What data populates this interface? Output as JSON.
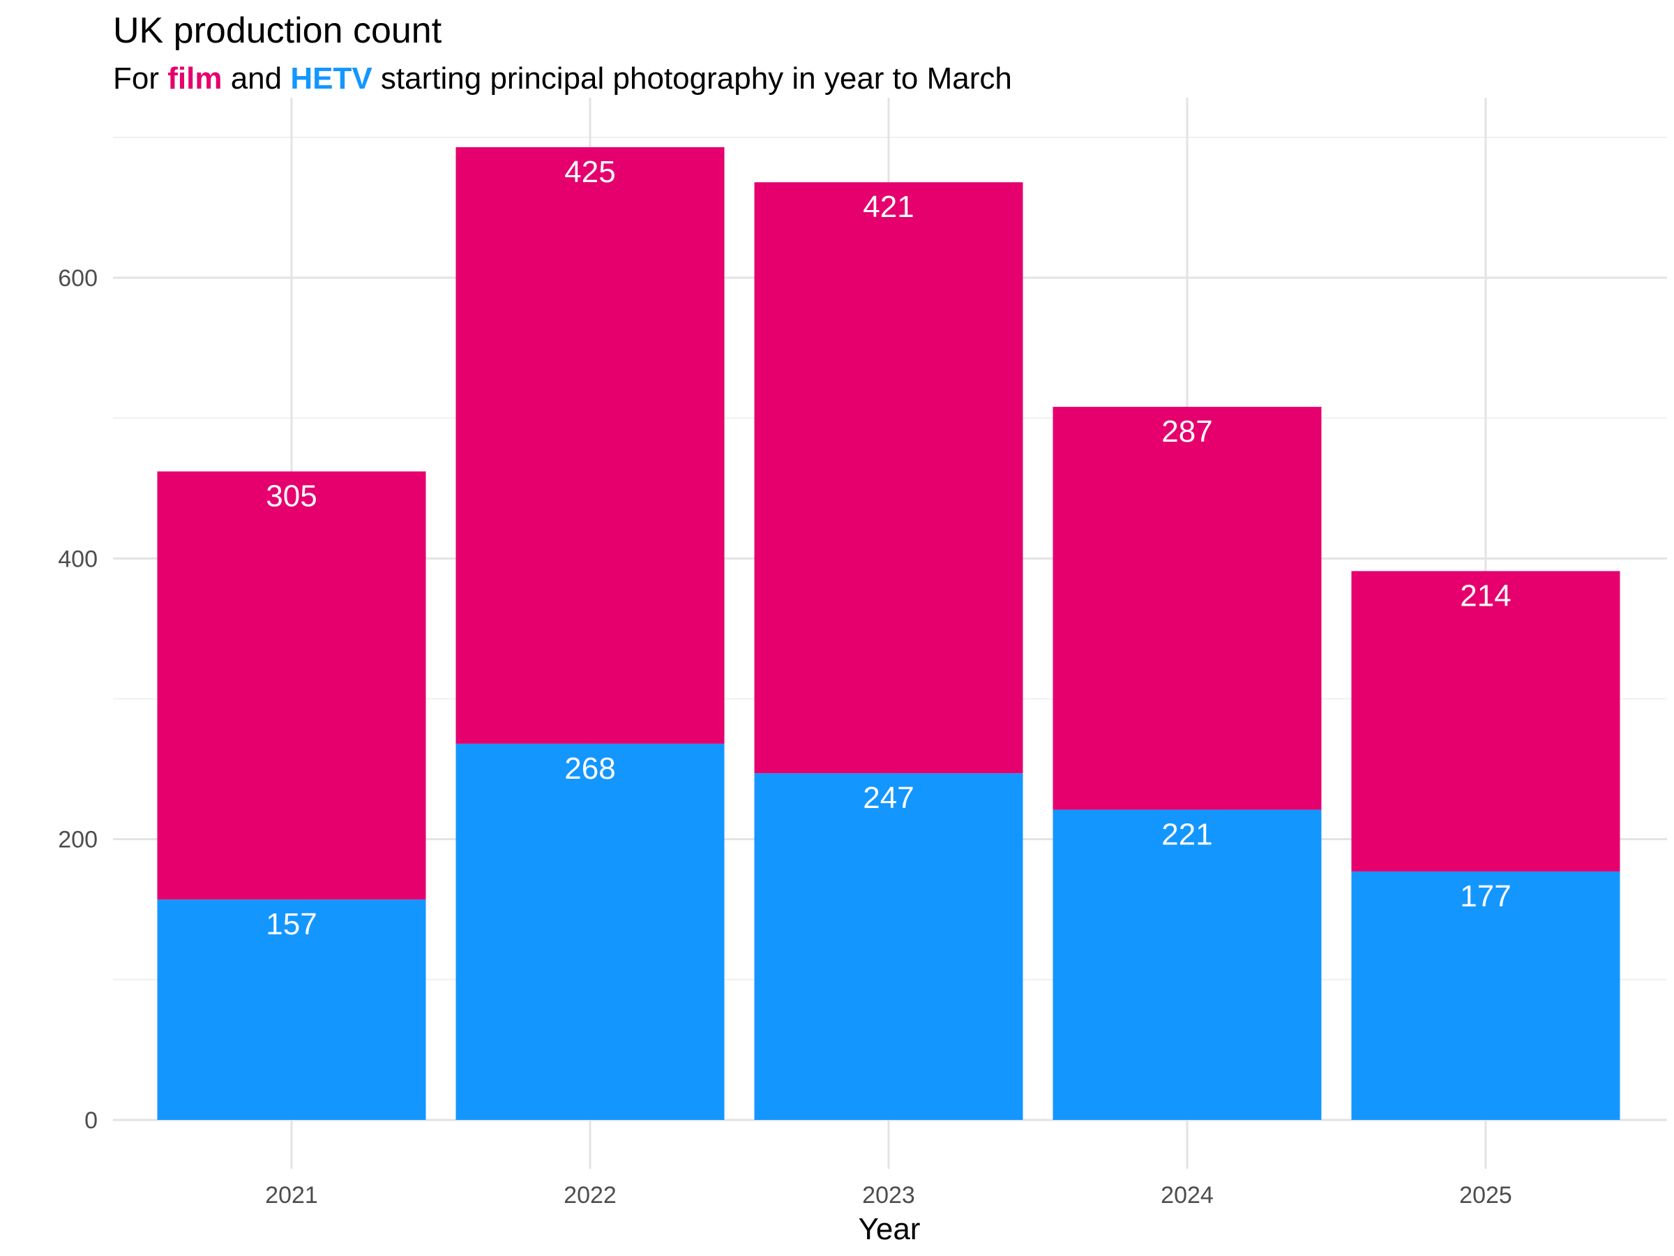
{
  "chart_data": {
    "type": "bar",
    "stacked": true,
    "title": "UK production count",
    "subtitle": {
      "prefix": "For ",
      "film_word": "film",
      "middle": " and ",
      "hetv_word": "HETV",
      "suffix": " starting principal photography in year to March"
    },
    "xlabel": "Year",
    "ylabel": "",
    "categories": [
      "2021",
      "2022",
      "2023",
      "2024",
      "2025"
    ],
    "series": [
      {
        "key": "hetv",
        "color": "#1496FF",
        "values": [
          157,
          268,
          247,
          221,
          177
        ]
      },
      {
        "key": "film",
        "color": "#E5006E",
        "values": [
          305,
          425,
          421,
          287,
          214
        ]
      }
    ],
    "ylim": [
      0,
      700
    ],
    "yticks": [
      0,
      200,
      400,
      600
    ],
    "grid": true,
    "legend": "none"
  }
}
